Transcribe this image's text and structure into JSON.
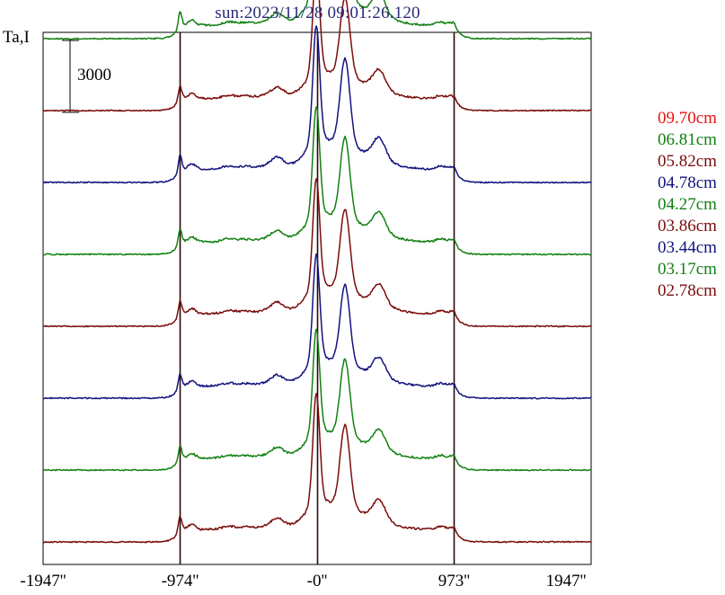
{
  "chart_data": {
    "type": "line",
    "title": "sun:2023/11/28 09:01:26.120",
    "ylabel": "Ta,I",
    "scale_bar_label": "3000",
    "scale_bar_value": 3000,
    "xlim": [
      -1947,
      1947
    ],
    "x_ticks": [
      {
        "value": -1947,
        "label": "-1947''"
      },
      {
        "value": -974,
        "label": "-974''"
      },
      {
        "value": 0,
        "label": "-0''"
      },
      {
        "value": 973,
        "label": "973''"
      },
      {
        "value": 1947,
        "label": "1947''"
      }
    ],
    "reference_lines_x": [
      -974,
      0,
      973
    ],
    "offset_step": 3000,
    "grid": false,
    "legend_position": "right",
    "series": [
      {
        "name": "09.70cm",
        "color": "#e8140f",
        "scale": 1.0
      },
      {
        "name": "06.81cm",
        "color": "#128012",
        "scale": 1.07
      },
      {
        "name": "05.82cm",
        "color": "#7a0c0c",
        "scale": 0.97
      },
      {
        "name": "04.78cm",
        "color": "#12127e",
        "scale": 1.06
      },
      {
        "name": "04.27cm",
        "color": "#128012",
        "scale": 1.0
      },
      {
        "name": "03.86cm",
        "color": "#7a0c0c",
        "scale": 1.0
      },
      {
        "name": "03.44cm",
        "color": "#12127e",
        "scale": 0.97
      },
      {
        "name": "03.17cm",
        "color": "#128012",
        "scale": 0.95
      },
      {
        "name": "02.78cm",
        "color": "#7a0c0c",
        "scale": 1.0
      }
    ]
  }
}
